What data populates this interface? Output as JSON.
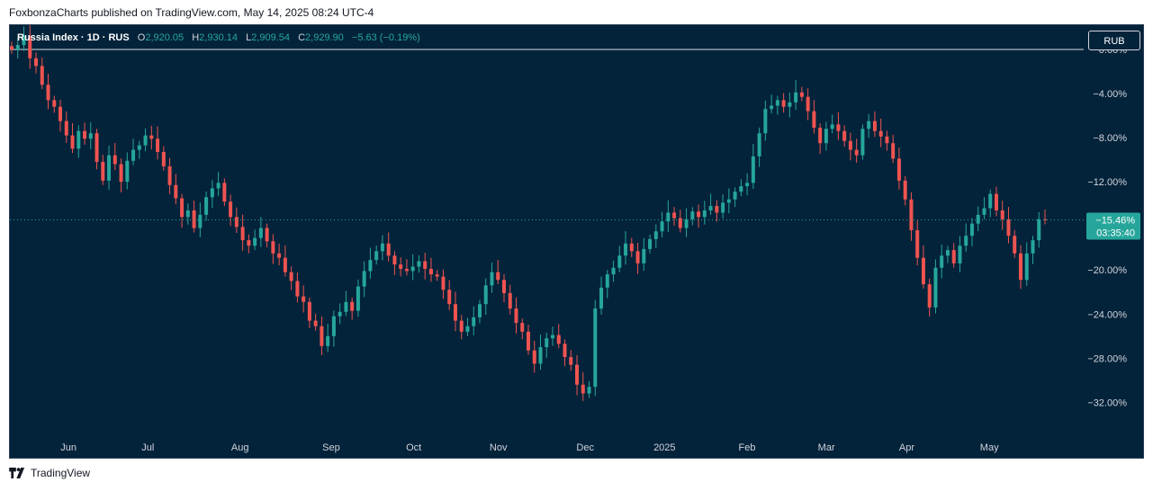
{
  "header": {
    "caption": "FoxbonzaCharts published on TradingView.com, May 14, 2025 08:24 UTC-4"
  },
  "legend": {
    "symbol": "Russia Index · 1D · RUS",
    "open_label": "O",
    "open": "2,920.05",
    "high_label": "H",
    "high": "2,930.14",
    "low_label": "L",
    "low": "2,909.54",
    "close_label": "C",
    "close": "2,929.90",
    "change": "−5.63 (−0.19%)"
  },
  "currency_button": "RUB",
  "price_label": {
    "value": "−15.46%",
    "countdown": "03:35:40"
  },
  "footer": {
    "brand": "TradingView",
    "logo_icon": "tradingview-logo-icon"
  },
  "colors": {
    "background": "#03233a",
    "up": "#26a69a",
    "down": "#ef5350",
    "axis_text": "#d1d4dc",
    "price_label_bg": "#26a69a"
  },
  "chart_data": {
    "type": "candlestick",
    "title": "",
    "ylabel": "",
    "y_scale": "percent",
    "ylim": [
      -34.5,
      2.2
    ],
    "yticks": [
      "0.00%",
      "−4.00%",
      "−8.00%",
      "−12.00%",
      "−20.00%",
      "−24.00%",
      "−28.00%",
      "−32.00%"
    ],
    "ytick_values": [
      0,
      -4,
      -8,
      -12,
      -20,
      -24,
      -28,
      -32
    ],
    "xticks": [
      "Jun",
      "Jul",
      "Aug",
      "Sep",
      "Oct",
      "Nov",
      "Dec",
      "2025",
      "Feb",
      "Mar",
      "Apr",
      "May"
    ],
    "baseline": 0,
    "last_value": -15.46,
    "series": [
      {
        "values": [
          0,
          0.4,
          1.2,
          -0.8,
          -1.5,
          -3.2,
          -4.6,
          -5.2,
          -6.5,
          -7.8,
          -9.0,
          -7.4,
          -8.1,
          -7.6,
          -10.2,
          -11.9,
          -9.6,
          -10.4,
          -12.0,
          -10.1,
          -9.1,
          -8.7,
          -7.8,
          -8.1,
          -9.3,
          -10.6,
          -12.3,
          -13.5,
          -15.2,
          -14.6,
          -16.2,
          -15.0,
          -13.4,
          -12.6,
          -12.1,
          -13.8,
          -15.2,
          -16.1,
          -17.3,
          -17.8,
          -17.1,
          -16.2,
          -17.4,
          -18.5,
          -18.9,
          -20.2,
          -21.0,
          -22.4,
          -22.9,
          -24.6,
          -25.1,
          -26.9,
          -26.0,
          -24.2,
          -23.8,
          -22.9,
          -23.7,
          -21.5,
          -20.1,
          -19.1,
          -18.3,
          -17.6,
          -18.7,
          -19.5,
          -19.9,
          -20.1,
          -19.7,
          -19.2,
          -19.9,
          -20.4,
          -20.6,
          -21.8,
          -23.1,
          -24.6,
          -25.6,
          -25.1,
          -24.3,
          -23.1,
          -21.4,
          -20.2,
          -20.9,
          -22.1,
          -23.5,
          -24.8,
          -25.6,
          -27.3,
          -28.5,
          -27.0,
          -26.2,
          -25.9,
          -26.7,
          -27.9,
          -28.6,
          -30.4,
          -31.2,
          -30.6,
          -23.5,
          -21.6,
          -20.4,
          -19.8,
          -18.7,
          -17.6,
          -18.3,
          -19.4,
          -18.1,
          -17.2,
          -16.5,
          -15.6,
          -14.8,
          -15.3,
          -16.2,
          -15.4,
          -14.7,
          -15.2,
          -14.6,
          -14.2,
          -14.8,
          -13.9,
          -13.6,
          -12.9,
          -12.4,
          -12.1,
          -9.7,
          -7.6,
          -5.4,
          -5.1,
          -4.6,
          -5.2,
          -4.8,
          -3.9,
          -4.3,
          -5.6,
          -7.1,
          -8.5,
          -7.2,
          -6.8,
          -7.4,
          -8.3,
          -9.1,
          -9.6,
          -7.2,
          -6.5,
          -7.4,
          -7.9,
          -8.5,
          -9.9,
          -11.9,
          -13.6,
          -16.4,
          -18.9,
          -21.3,
          -23.4,
          -19.8,
          -18.7,
          -18.2,
          -19.4,
          -17.8,
          -16.9,
          -15.8,
          -15.0,
          -14.4,
          -13.1,
          -14.6,
          -15.4,
          -16.9,
          -18.5,
          -20.9,
          -18.5,
          -17.3,
          -15.4,
          -15.46
        ]
      }
    ]
  }
}
